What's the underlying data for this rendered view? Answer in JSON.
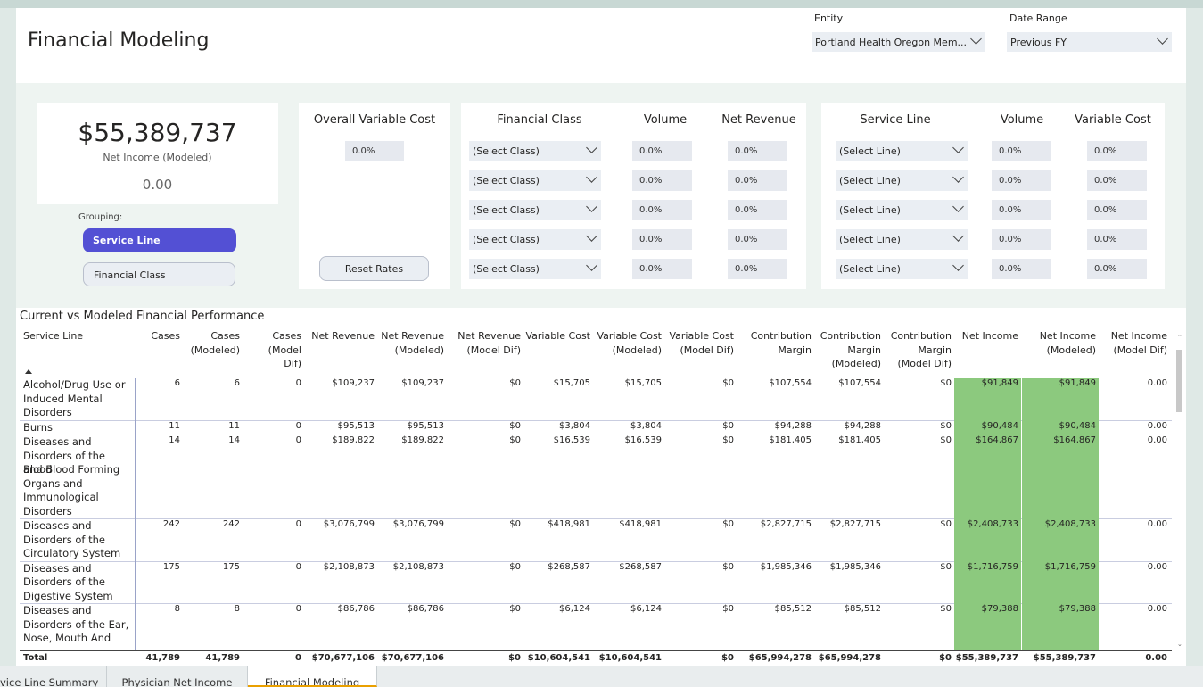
{
  "page": {
    "title": "Financial Modeling"
  },
  "filters": {
    "entity": {
      "label": "Entity",
      "value": "Portland Health Oregon Mem..."
    },
    "date_range": {
      "label": "Date Range",
      "value": "Previous FY"
    }
  },
  "kpi": {
    "value": "$55,389,737",
    "label": "Net Income (Modeled)",
    "secondary": "0.00"
  },
  "grouping": {
    "label": "Grouping:",
    "options": [
      "Service Line",
      "Financial Class"
    ],
    "selected": "Service Line"
  },
  "overall_variable_cost": {
    "title": "Overall Variable Cost",
    "value": "0.0%",
    "reset_label": "Reset Rates"
  },
  "financial_class_panel": {
    "headers": [
      "Financial Class",
      "Volume",
      "Net Revenue"
    ],
    "rows": [
      {
        "select": "(Select Class)",
        "volume": "0.0%",
        "net_revenue": "0.0%"
      },
      {
        "select": "(Select Class)",
        "volume": "0.0%",
        "net_revenue": "0.0%"
      },
      {
        "select": "(Select Class)",
        "volume": "0.0%",
        "net_revenue": "0.0%"
      },
      {
        "select": "(Select Class)",
        "volume": "0.0%",
        "net_revenue": "0.0%"
      },
      {
        "select": "(Select Class)",
        "volume": "0.0%",
        "net_revenue": "0.0%"
      }
    ]
  },
  "service_line_panel": {
    "headers": [
      "Service Line",
      "Volume",
      "Variable Cost"
    ],
    "rows": [
      {
        "select": "(Select Line)",
        "volume": "0.0%",
        "variable_cost": "0.0%"
      },
      {
        "select": "(Select Line)",
        "volume": "0.0%",
        "variable_cost": "0.0%"
      },
      {
        "select": "(Select Line)",
        "volume": "0.0%",
        "variable_cost": "0.0%"
      },
      {
        "select": "(Select Line)",
        "volume": "0.0%",
        "variable_cost": "0.0%"
      },
      {
        "select": "(Select Line)",
        "volume": "0.0%",
        "variable_cost": "0.0%"
      }
    ]
  },
  "table": {
    "title": "Current vs Modeled Financial Performance",
    "columns": [
      [
        "Service Line"
      ],
      [
        "Cases"
      ],
      [
        "Cases",
        "(Modeled)"
      ],
      [
        "Cases",
        "(Model",
        "Dif)"
      ],
      [
        "Net Revenue"
      ],
      [
        "Net Revenue",
        "(Modeled)"
      ],
      [
        "Net Revenue",
        "(Model Dif)"
      ],
      [
        "Variable Cost"
      ],
      [
        "Variable Cost",
        "(Modeled)"
      ],
      [
        "Variable Cost",
        "(Model Dif)"
      ],
      [
        "Contribution",
        "Margin"
      ],
      [
        "Contribution",
        "Margin",
        "(Modeled)"
      ],
      [
        "Contribution",
        "Margin",
        "(Model Dif)"
      ],
      [
        "Net Income"
      ],
      [
        "Net Income",
        "(Modeled)"
      ],
      [
        "Net Income",
        "(Model Dif)"
      ]
    ],
    "rows": [
      {
        "name": [
          "Alcohol/Drug Use or",
          "Induced Mental",
          "Disorders"
        ],
        "values": [
          "6",
          "6",
          "0",
          "$109,237",
          "$109,237",
          "$0",
          "$15,705",
          "$15,705",
          "$0",
          "$107,554",
          "$107,554",
          "$0",
          "$91,849",
          "$91,849",
          "0.00"
        ]
      },
      {
        "name": [
          "Burns"
        ],
        "values": [
          "11",
          "11",
          "0",
          "$95,513",
          "$95,513",
          "$0",
          "$3,804",
          "$3,804",
          "$0",
          "$94,288",
          "$94,288",
          "$0",
          "$90,484",
          "$90,484",
          "0.00"
        ]
      },
      {
        "name": [
          "Diseases and",
          "Disorders of the Blood",
          "and Blood Forming",
          "Organs and",
          "Immunological",
          "Disorders"
        ],
        "values": [
          "14",
          "14",
          "0",
          "$189,822",
          "$189,822",
          "$0",
          "$16,539",
          "$16,539",
          "$0",
          "$181,405",
          "$181,405",
          "$0",
          "$164,867",
          "$164,867",
          "0.00"
        ]
      },
      {
        "name": [
          "Diseases and",
          "Disorders of the",
          "Circulatory System"
        ],
        "values": [
          "242",
          "242",
          "0",
          "$3,076,799",
          "$3,076,799",
          "$0",
          "$418,981",
          "$418,981",
          "$0",
          "$2,827,715",
          "$2,827,715",
          "$0",
          "$2,408,733",
          "$2,408,733",
          "0.00"
        ]
      },
      {
        "name": [
          "Diseases and",
          "Disorders of the",
          "Digestive System"
        ],
        "values": [
          "175",
          "175",
          "0",
          "$2,108,873",
          "$2,108,873",
          "$0",
          "$268,587",
          "$268,587",
          "$0",
          "$1,985,346",
          "$1,985,346",
          "$0",
          "$1,716,759",
          "$1,716,759",
          "0.00"
        ]
      },
      {
        "name": [
          "Diseases and",
          "Disorders of the Ear,",
          "Nose, Mouth And"
        ],
        "values": [
          "8",
          "8",
          "0",
          "$86,786",
          "$86,786",
          "$0",
          "$6,124",
          "$6,124",
          "$0",
          "$85,512",
          "$85,512",
          "$0",
          "$79,388",
          "$79,388",
          "0.00"
        ]
      }
    ],
    "total": {
      "name": "Total",
      "values": [
        "41,789",
        "41,789",
        "0",
        "$70,677,106",
        "$70,677,106",
        "$0",
        "$10,604,541",
        "$10,604,541",
        "$0",
        "$65,994,278",
        "$65,994,278",
        "$0",
        "$55,389,737",
        "$55,389,737",
        "0.00"
      ]
    },
    "highlight_color": "#8cc97e"
  },
  "tabs": [
    {
      "label": "vice Line Summary",
      "active": false
    },
    {
      "label": "Physician Net Income",
      "active": false
    },
    {
      "label": "Financial Modeling",
      "active": true
    }
  ],
  "colors": {
    "accent": "#5350d4",
    "highlight": "#8cc97e",
    "tab_active": "#eaa000"
  }
}
